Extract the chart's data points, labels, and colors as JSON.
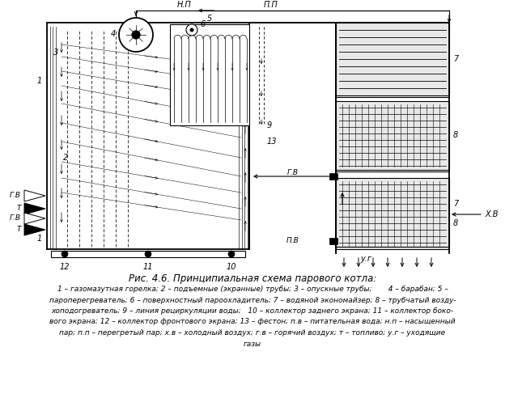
{
  "title": "Рис. 4.6. Принципиальная схема парового котла:",
  "caption_lines": [
    "1 – газомазутная горелка; 2 – подъемные (экранные) трубы; 3 – опускные трубы;       4 – барабан; 5 –",
    "пароперегреватель; 6 – поверхностный пароохладитель; 7 – водяной экономайзер; 8 – трубчатый возду-",
    "хоподогреватель; 9 – линия рециркуляции воды;   10 – коллектор заднего экрана; 11 – коллектор боко-",
    "вого экрана; 12 – коллектор фронтового экрана; 13 – фестон; п.в – питательная вода; н.п – насыщенный",
    "пар; п.п – перегретый пар; х.в – холодный воздух; г.в – горячий воздух; т – топливо; у.г – уходящие",
    "газы"
  ],
  "bg_color": "#ffffff",
  "fig_width": 6.24,
  "fig_height": 4.92,
  "dpi": 100
}
